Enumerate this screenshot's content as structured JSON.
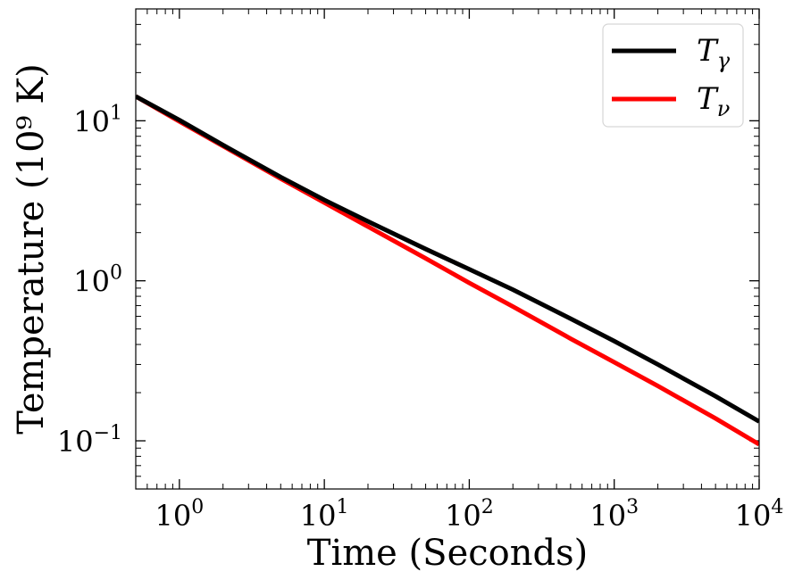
{
  "chart_data": {
    "type": "line",
    "xlabel": "Time (Seconds)",
    "ylabel": "Temperature  (10⁹ K)",
    "xscale": "log",
    "yscale": "log",
    "xlim": [
      0.5,
      10000
    ],
    "ylim": [
      0.05,
      50
    ],
    "legend": "top-right",
    "grid": false,
    "xticks": [
      {
        "value": 1,
        "base": "10",
        "exp": "0"
      },
      {
        "value": 10,
        "base": "10",
        "exp": "1"
      },
      {
        "value": 100,
        "base": "10",
        "exp": "2"
      },
      {
        "value": 1000,
        "base": "10",
        "exp": "3"
      },
      {
        "value": 10000,
        "base": "10",
        "exp": "4"
      }
    ],
    "yticks": [
      {
        "value": 0.1,
        "base": "10",
        "exp": "−1"
      },
      {
        "value": 1,
        "base": "10",
        "exp": "0"
      },
      {
        "value": 10,
        "base": "10",
        "exp": "1"
      }
    ],
    "series": [
      {
        "name": "T",
        "name_sub": "γ",
        "color": "#000000",
        "x": [
          0.5,
          1,
          2,
          5,
          10,
          20,
          50,
          100,
          200,
          500,
          1000,
          2000,
          5000,
          10000
        ],
        "y": [
          14.2,
          10.1,
          7.05,
          4.45,
          3.2,
          2.35,
          1.58,
          1.18,
          0.88,
          0.58,
          0.42,
          0.3,
          0.19,
          0.132
        ]
      },
      {
        "name": "T",
        "name_sub": "ν",
        "color": "#ff0000",
        "x": [
          0.5,
          1,
          2,
          5,
          10,
          20,
          50,
          100,
          200,
          500,
          1000,
          2000,
          5000,
          10000
        ],
        "y": [
          14.2,
          9.9,
          6.95,
          4.35,
          3.08,
          2.18,
          1.38,
          0.97,
          0.69,
          0.435,
          0.31,
          0.22,
          0.138,
          0.095
        ]
      }
    ]
  }
}
